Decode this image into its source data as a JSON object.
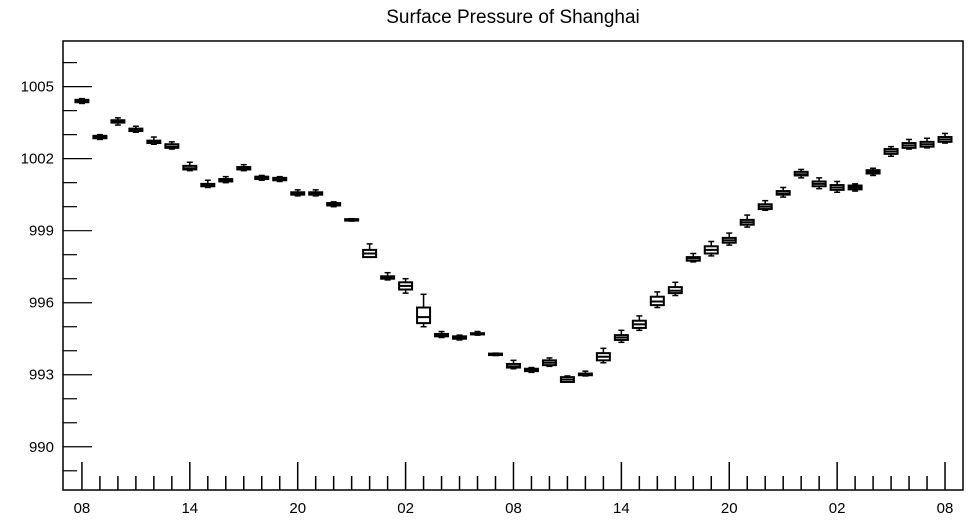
{
  "chart_data": {
    "type": "box",
    "title": "Surface Pressure of Shanghai",
    "xlabel": "",
    "ylabel": "",
    "ylim": [
      988.2,
      1006.9
    ],
    "y_ticks": [
      "990",
      "993",
      "996",
      "999",
      "1002",
      "1005"
    ],
    "y_tick_values": [
      990,
      993,
      996,
      999,
      1002,
      1005
    ],
    "x_tick_labels": [
      "08",
      "14",
      "20",
      "02",
      "08",
      "14",
      "20",
      "02",
      "08"
    ],
    "x_tick_hours": [
      0,
      6,
      12,
      18,
      24,
      30,
      36,
      42,
      48
    ],
    "grid": false,
    "legend": "none",
    "boxes": [
      {
        "hour": 0,
        "min": 1004.3,
        "q1": 1004.35,
        "median": 1004.4,
        "q3": 1004.45,
        "max": 1004.5
      },
      {
        "hour": 1,
        "min": 1002.8,
        "q1": 1002.85,
        "median": 1002.9,
        "q3": 1002.95,
        "max": 1003.0
      },
      {
        "hour": 2,
        "min": 1003.4,
        "q1": 1003.5,
        "median": 1003.55,
        "q3": 1003.6,
        "max": 1003.7
      },
      {
        "hour": 3,
        "min": 1003.1,
        "q1": 1003.15,
        "median": 1003.2,
        "q3": 1003.25,
        "max": 1003.35
      },
      {
        "hour": 4,
        "min": 1002.6,
        "q1": 1002.65,
        "median": 1002.7,
        "q3": 1002.75,
        "max": 1002.9
      },
      {
        "hour": 5,
        "min": 1002.4,
        "q1": 1002.45,
        "median": 1002.5,
        "q3": 1002.6,
        "max": 1002.7
      },
      {
        "hour": 6,
        "min": 1001.5,
        "q1": 1001.55,
        "median": 1001.6,
        "q3": 1001.7,
        "max": 1001.85
      },
      {
        "hour": 7,
        "min": 1000.8,
        "q1": 1000.85,
        "median": 1000.9,
        "q3": 1000.95,
        "max": 1001.1
      },
      {
        "hour": 8,
        "min": 1001.0,
        "q1": 1001.05,
        "median": 1001.1,
        "q3": 1001.15,
        "max": 1001.25
      },
      {
        "hour": 9,
        "min": 1001.5,
        "q1": 1001.55,
        "median": 1001.6,
        "q3": 1001.65,
        "max": 1001.75
      },
      {
        "hour": 10,
        "min": 1001.1,
        "q1": 1001.15,
        "median": 1001.2,
        "q3": 1001.25,
        "max": 1001.3
      },
      {
        "hour": 11,
        "min": 1001.05,
        "q1": 1001.1,
        "median": 1001.15,
        "q3": 1001.2,
        "max": 1001.25
      },
      {
        "hour": 12,
        "min": 1000.45,
        "q1": 1000.5,
        "median": 1000.55,
        "q3": 1000.6,
        "max": 1000.7
      },
      {
        "hour": 13,
        "min": 1000.45,
        "q1": 1000.5,
        "median": 1000.55,
        "q3": 1000.6,
        "max": 1000.7
      },
      {
        "hour": 14,
        "min": 1000.0,
        "q1": 1000.05,
        "median": 1000.1,
        "q3": 1000.15,
        "max": 1000.2
      },
      {
        "hour": 15,
        "min": 999.4,
        "q1": 999.42,
        "median": 999.45,
        "q3": 999.48,
        "max": 999.5
      },
      {
        "hour": 16,
        "min": 997.9,
        "q1": 997.9,
        "median": 998.05,
        "q3": 998.2,
        "max": 998.45
      },
      {
        "hour": 17,
        "min": 996.95,
        "q1": 997.0,
        "median": 997.05,
        "q3": 997.1,
        "max": 997.25
      },
      {
        "hour": 18,
        "min": 996.4,
        "q1": 996.55,
        "median": 996.7,
        "q3": 996.85,
        "max": 997.0
      },
      {
        "hour": 19,
        "min": 995.0,
        "q1": 995.15,
        "median": 995.4,
        "q3": 995.8,
        "max": 996.35
      },
      {
        "hour": 20,
        "min": 994.55,
        "q1": 994.6,
        "median": 994.65,
        "q3": 994.7,
        "max": 994.8
      },
      {
        "hour": 21,
        "min": 994.45,
        "q1": 994.5,
        "median": 994.55,
        "q3": 994.6,
        "max": 994.65
      },
      {
        "hour": 22,
        "min": 994.65,
        "q1": 994.68,
        "median": 994.7,
        "q3": 994.73,
        "max": 994.8
      },
      {
        "hour": 23,
        "min": 993.8,
        "q1": 993.82,
        "median": 993.85,
        "q3": 993.88,
        "max": 993.9
      },
      {
        "hour": 24,
        "min": 993.25,
        "q1": 993.3,
        "median": 993.35,
        "q3": 993.45,
        "max": 993.6
      },
      {
        "hour": 25,
        "min": 993.1,
        "q1": 993.15,
        "median": 993.2,
        "q3": 993.25,
        "max": 993.3
      },
      {
        "hour": 26,
        "min": 993.35,
        "q1": 993.4,
        "median": 993.5,
        "q3": 993.6,
        "max": 993.7
      },
      {
        "hour": 27,
        "min": 992.7,
        "q1": 992.7,
        "median": 992.8,
        "q3": 992.9,
        "max": 992.95
      },
      {
        "hour": 28,
        "min": 992.95,
        "q1": 992.98,
        "median": 993.0,
        "q3": 993.05,
        "max": 993.15
      },
      {
        "hour": 29,
        "min": 993.5,
        "q1": 993.6,
        "median": 993.75,
        "q3": 993.9,
        "max": 994.1
      },
      {
        "hour": 30,
        "min": 994.35,
        "q1": 994.45,
        "median": 994.55,
        "q3": 994.65,
        "max": 994.85
      },
      {
        "hour": 31,
        "min": 994.85,
        "q1": 994.95,
        "median": 995.1,
        "q3": 995.25,
        "max": 995.45
      },
      {
        "hour": 32,
        "min": 995.8,
        "q1": 995.9,
        "median": 996.05,
        "q3": 996.25,
        "max": 996.45
      },
      {
        "hour": 33,
        "min": 996.3,
        "q1": 996.4,
        "median": 996.5,
        "q3": 996.65,
        "max": 996.85
      },
      {
        "hour": 34,
        "min": 997.7,
        "q1": 997.75,
        "median": 997.85,
        "q3": 997.9,
        "max": 998.05
      },
      {
        "hour": 35,
        "min": 997.95,
        "q1": 998.05,
        "median": 998.2,
        "q3": 998.35,
        "max": 998.55
      },
      {
        "hour": 36,
        "min": 998.4,
        "q1": 998.5,
        "median": 998.6,
        "q3": 998.7,
        "max": 998.9
      },
      {
        "hour": 37,
        "min": 999.15,
        "q1": 999.25,
        "median": 999.35,
        "q3": 999.45,
        "max": 999.65
      },
      {
        "hour": 38,
        "min": 999.85,
        "q1": 999.9,
        "median": 1000.0,
        "q3": 1000.1,
        "max": 1000.25
      },
      {
        "hour": 39,
        "min": 1000.4,
        "q1": 1000.5,
        "median": 1000.55,
        "q3": 1000.65,
        "max": 1000.8
      },
      {
        "hour": 40,
        "min": 1001.2,
        "q1": 1001.3,
        "median": 1001.35,
        "q3": 1001.45,
        "max": 1001.55
      },
      {
        "hour": 41,
        "min": 1000.75,
        "q1": 1000.85,
        "median": 1000.95,
        "q3": 1001.05,
        "max": 1001.2
      },
      {
        "hour": 42,
        "min": 1000.6,
        "q1": 1000.7,
        "median": 1000.8,
        "q3": 1000.9,
        "max": 1001.05
      },
      {
        "hour": 43,
        "min": 1000.65,
        "q1": 1000.72,
        "median": 1000.8,
        "q3": 1000.88,
        "max": 1000.95
      },
      {
        "hour": 44,
        "min": 1001.3,
        "q1": 1001.38,
        "median": 1001.45,
        "q3": 1001.52,
        "max": 1001.6
      },
      {
        "hour": 45,
        "min": 1002.1,
        "q1": 1002.2,
        "median": 1002.3,
        "q3": 1002.4,
        "max": 1002.5
      },
      {
        "hour": 46,
        "min": 1002.4,
        "q1": 1002.45,
        "median": 1002.55,
        "q3": 1002.65,
        "max": 1002.8
      },
      {
        "hour": 47,
        "min": 1002.45,
        "q1": 1002.5,
        "median": 1002.6,
        "q3": 1002.7,
        "max": 1002.85
      },
      {
        "hour": 48,
        "min": 1002.65,
        "q1": 1002.7,
        "median": 1002.8,
        "q3": 1002.9,
        "max": 1003.05
      }
    ]
  }
}
